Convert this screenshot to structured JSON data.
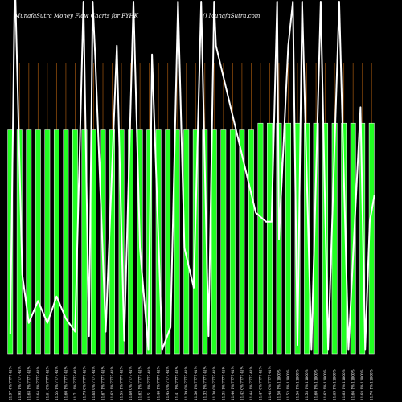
{
  "chart_data": {
    "type": "bar",
    "title_left": "MunafaSutra  Money Flow  Charts for FYHK",
    "title_right": "() MunafaSutra.com",
    "colors": {
      "background": "#000000",
      "bar": "#22ff22",
      "bar_border": "#ffffff",
      "grid": "#8b4a0c",
      "line": "#ffffff"
    },
    "bars": [
      {
        "label": "21.97 4% 7777 41%",
        "value": 1.0
      },
      {
        "label": "11.98 1% 7777 41%",
        "value": 1.0
      },
      {
        "label": "11.68 1% 7777 41%",
        "value": 1.0
      },
      {
        "label": "11.64 1% 7777 41%",
        "value": 1.0
      },
      {
        "label": "11.61 0% 7777 41%",
        "value": 1.0
      },
      {
        "label": "11.55 1% 7777 41%",
        "value": 1.0
      },
      {
        "label": "11.60 1% 7777 41%",
        "value": 1.0
      },
      {
        "label": "11.71 1% 7777 41%",
        "value": 1.0
      },
      {
        "label": "11.73 0% 7777 41%",
        "value": 1.0
      },
      {
        "label": "11.68 0% 7777 41%",
        "value": 1.0
      },
      {
        "label": "11.67 1% 7777 41%",
        "value": 1.0
      },
      {
        "label": "11.62 1% 7777 41%",
        "value": 1.0
      },
      {
        "label": "11.55 1% 7777 41%",
        "value": 1.0
      },
      {
        "label": "11.60 0% 7777 41%",
        "value": 1.0
      },
      {
        "label": "11.62 1% 7777 41%",
        "value": 1.0
      },
      {
        "label": "11.51 1% 7777 41%",
        "value": 1.0
      },
      {
        "label": "11.48 1% 7777 41%",
        "value": 1.0
      },
      {
        "label": "11.45 0% 7777 41%",
        "value": 1.0
      },
      {
        "label": "11.41 1% 7777 41%",
        "value": 1.0
      },
      {
        "label": "11.39 0% 7777 41%",
        "value": 1.0
      },
      {
        "label": "11.36 1% 7777 41%",
        "value": 1.0
      },
      {
        "label": "11.32 1% 7777 41%",
        "value": 1.0
      },
      {
        "label": "11.30 0% 7777 41%",
        "value": 1.0
      },
      {
        "label": "11.35 1% 7777 41%",
        "value": 1.0
      },
      {
        "label": "11.40 1% 7777 41%",
        "value": 1.0
      },
      {
        "label": "11.42 0% 7777 41%",
        "value": 1.0
      },
      {
        "label": "11.44 1% 7777 41%",
        "value": 1.0
      },
      {
        "label": "11.47 0% 7777 41%",
        "value": 1.03
      },
      {
        "label": "11.48 0% 7777 41%",
        "value": 1.03
      },
      {
        "label": "11.50 1% 11800%",
        "value": 1.03
      },
      {
        "label": "11.53 1% 11800%",
        "value": 1.03
      },
      {
        "label": "11.56 1% 11800%",
        "value": 1.03
      },
      {
        "label": "11.58 1% 11800%",
        "value": 1.03
      },
      {
        "label": "11.60 1% 11800%",
        "value": 1.03
      },
      {
        "label": "11.62 1% 11800%",
        "value": 1.03
      },
      {
        "label": "11.63 1% 11800%",
        "value": 1.03
      },
      {
        "label": "11.65 1% 11800%",
        "value": 1.03
      },
      {
        "label": "11.66 1% 11800%",
        "value": 1.03
      },
      {
        "label": "11.68 1% 11800%",
        "value": 1.03
      },
      {
        "label": "11.70 1% 11800%",
        "value": 1.03
      }
    ],
    "line_points": [
      {
        "i": 0,
        "v": 0.22
      },
      {
        "i": 0.5,
        "v": 4.3
      },
      {
        "i": 1.3,
        "v": 0.9
      },
      {
        "i": 2,
        "v": 0.35
      },
      {
        "i": 3,
        "v": 0.6
      },
      {
        "i": 4,
        "v": 0.35
      },
      {
        "i": 5,
        "v": 0.65
      },
      {
        "i": 6,
        "v": 0.4
      },
      {
        "i": 7,
        "v": 0.25
      },
      {
        "i": 7.9,
        "v": 4.0
      },
      {
        "i": 8.5,
        "v": 0.2
      },
      {
        "i": 8.9,
        "v": 4.0
      },
      {
        "i": 9.2,
        "v": 3.3
      },
      {
        "i": 10.3,
        "v": 0.25
      },
      {
        "i": 11.5,
        "v": 3.5
      },
      {
        "i": 12.3,
        "v": 0.15
      },
      {
        "i": 13.3,
        "v": 4.0
      },
      {
        "i": 14.0,
        "v": 1.2
      },
      {
        "i": 14.9,
        "v": 0.05
      },
      {
        "i": 15.3,
        "v": 3.4
      },
      {
        "i": 16.4,
        "v": 0.05
      },
      {
        "i": 17.3,
        "v": 0.3
      },
      {
        "i": 18.1,
        "v": 4.0
      },
      {
        "i": 18.8,
        "v": 1.2
      },
      {
        "i": 19.8,
        "v": 0.75
      },
      {
        "i": 20.6,
        "v": 4.0
      },
      {
        "i": 21.4,
        "v": 0.2
      },
      {
        "i": 22.0,
        "v": 4.0
      },
      {
        "i": 22.2,
        "v": 3.5
      },
      {
        "i": 26.5,
        "v": 1.6
      },
      {
        "i": 27.6,
        "v": 1.5
      },
      {
        "i": 28.2,
        "v": 1.5
      },
      {
        "i": 28.8,
        "v": 4.0
      },
      {
        "i": 29.0,
        "v": 1.3
      },
      {
        "i": 30.0,
        "v": 3.5
      },
      {
        "i": 30.5,
        "v": 4.0
      },
      {
        "i": 31.0,
        "v": 0.1
      },
      {
        "i": 31.5,
        "v": 4.0
      },
      {
        "i": 32.5,
        "v": 0.05
      },
      {
        "i": 33.5,
        "v": 4.0
      },
      {
        "i": 34.3,
        "v": 0.05
      },
      {
        "i": 35.5,
        "v": 4.0
      },
      {
        "i": 36.5,
        "v": 0.05
      },
      {
        "i": 37.8,
        "v": 2.8
      },
      {
        "i": 38.3,
        "v": 0.05
      },
      {
        "i": 38.8,
        "v": 1.5
      },
      {
        "i": 39.3,
        "v": 1.8
      }
    ],
    "grid": true,
    "ylim": [
      0,
      1.3
    ]
  }
}
